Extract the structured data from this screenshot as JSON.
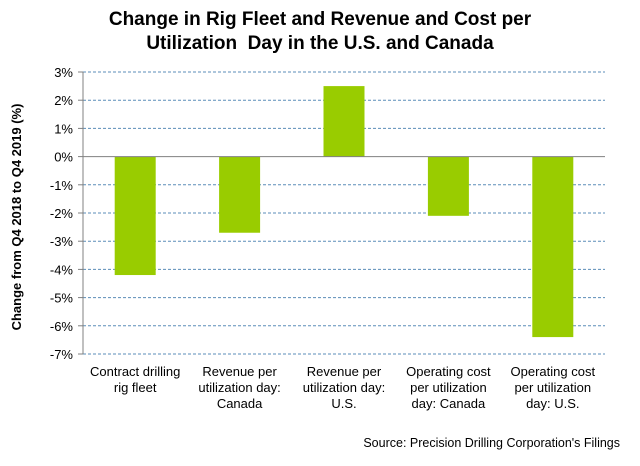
{
  "chart_data": {
    "type": "bar",
    "title_lines": [
      "Change in Rig Fleet and Revenue and Cost per",
      "Utilization  Day in the U.S. and Canada"
    ],
    "ylabel": "Change from Q4 2018 to Q4 2019 (%)",
    "xlabel": "",
    "ylim": [
      -7,
      3
    ],
    "yticks": [
      3,
      2,
      1,
      0,
      -1,
      -2,
      -3,
      -4,
      -5,
      -6,
      -7
    ],
    "ytick_labels": [
      "3%",
      "2%",
      "1%",
      "0%",
      "-1%",
      "-2%",
      "-3%",
      "-4%",
      "-5%",
      "-6%",
      "-7%"
    ],
    "grid": true,
    "legend": "none",
    "categories": [
      [
        "Contract drilling",
        "rig fleet"
      ],
      [
        "Revenue per",
        "utilization day:",
        "Canada"
      ],
      [
        "Revenue per",
        "utilization day:",
        "U.S."
      ],
      [
        "Operating cost",
        "per utilization",
        "day: Canada"
      ],
      [
        "Operating cost",
        "per utilization",
        "day: U.S."
      ]
    ],
    "values": [
      -4.2,
      -2.7,
      2.5,
      -2.1,
      -6.4
    ],
    "bar_color": "#99CC00",
    "grid_color": "#5B8DB8"
  },
  "source": "Source: Precision Drilling Corporation's  Filings"
}
